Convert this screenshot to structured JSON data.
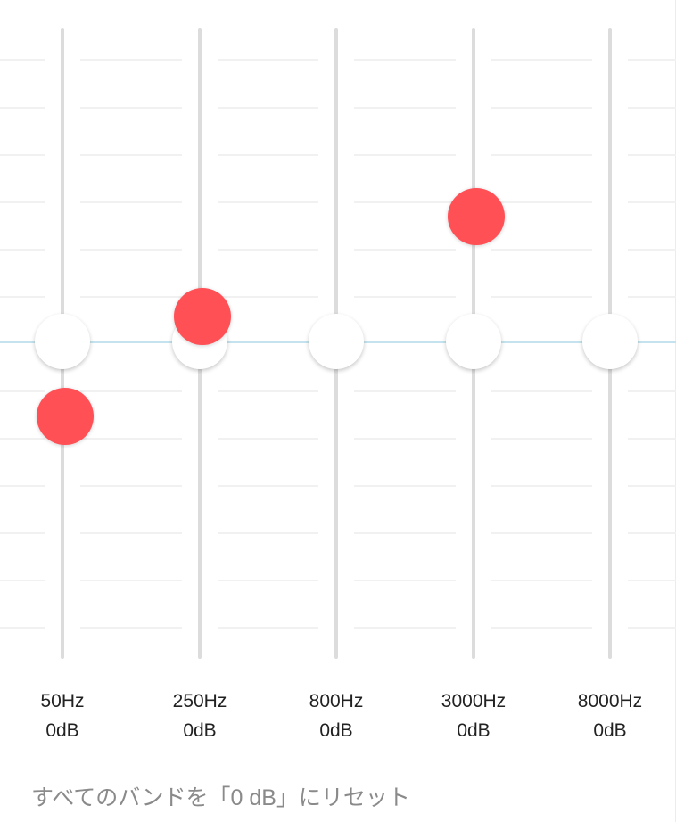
{
  "equalizer": {
    "bands": [
      {
        "frequency": "50Hz",
        "gain_label": "0dB",
        "thumb_value_db": 0,
        "marker_value_db": -3
      },
      {
        "frequency": "250Hz",
        "gain_label": "0dB",
        "thumb_value_db": 0,
        "marker_value_db": 1
      },
      {
        "frequency": "800Hz",
        "gain_label": "0dB",
        "thumb_value_db": 0,
        "marker_value_db": null
      },
      {
        "frequency": "3000Hz",
        "gain_label": "0dB",
        "thumb_value_db": 0,
        "marker_value_db": 5
      },
      {
        "frequency": "8000Hz",
        "gain_label": "0dB",
        "thumb_value_db": 0,
        "marker_value_db": null
      }
    ],
    "reset_label": "すべてのバンドを「0 dB」にリセット"
  },
  "colors": {
    "marker": "#ff5056",
    "center_line": "#c4e3ee",
    "track": "#dcdcdc",
    "label_text": "#222222",
    "reset_text": "#8a8a8a"
  }
}
